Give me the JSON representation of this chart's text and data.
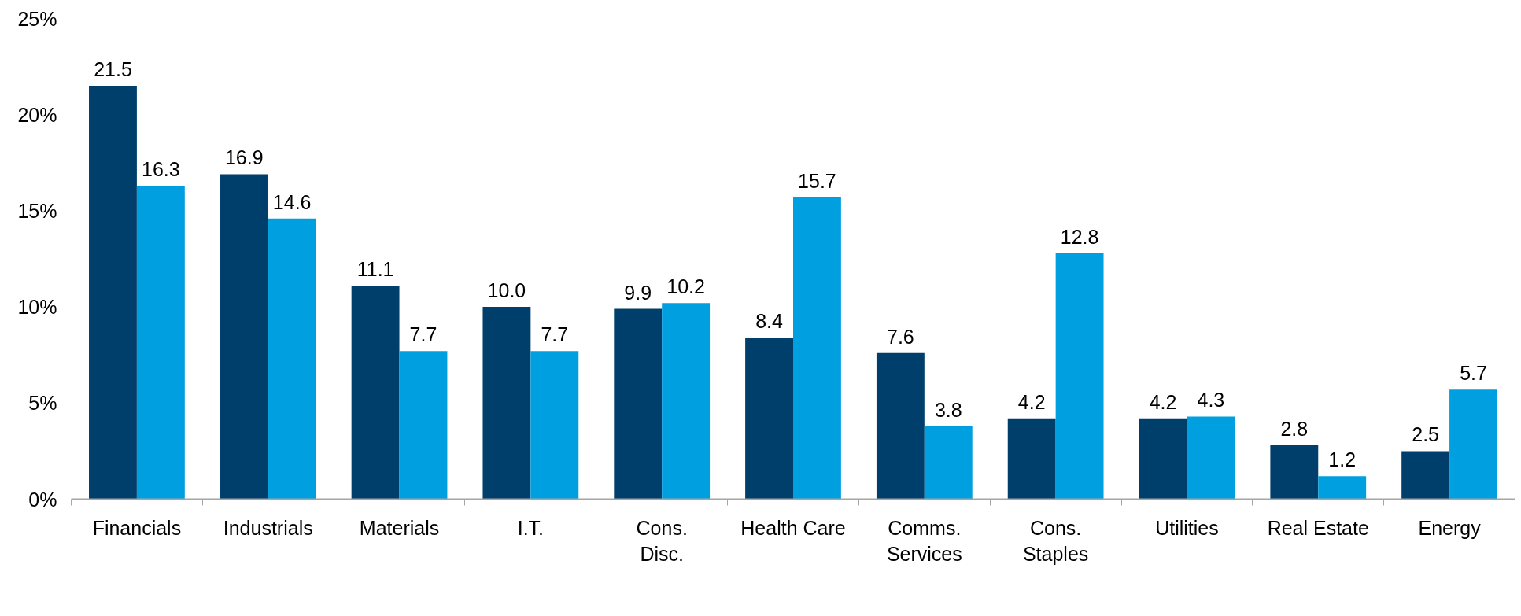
{
  "chart_data": {
    "type": "bar",
    "categories": [
      "Financials",
      "Industrials",
      "Materials",
      "I.T.",
      "Cons.\nDisc.",
      "Health Care",
      "Comms.\nServices",
      "Cons.\nStaples",
      "Utilities",
      "Real Estate",
      "Energy"
    ],
    "series": [
      {
        "color": "#003f6b",
        "values": [
          21.5,
          16.9,
          11.1,
          10.0,
          9.9,
          8.4,
          7.6,
          4.2,
          4.2,
          2.8,
          2.5
        ],
        "value_labels": [
          "21.5",
          "16.9",
          "11.1",
          "10.0",
          "9.9",
          "8.4",
          "7.6",
          "4.2",
          "4.2",
          "2.8",
          "2.5"
        ]
      },
      {
        "color": "#009fdf",
        "values": [
          16.3,
          14.6,
          7.7,
          7.7,
          10.2,
          15.7,
          3.8,
          12.8,
          4.3,
          1.2,
          5.7
        ],
        "value_labels": [
          "16.3",
          "14.6",
          "7.7",
          "7.7",
          "10.2",
          "15.7",
          "3.8",
          "12.8",
          "4.3",
          "1.2",
          "5.7"
        ]
      }
    ],
    "ylim": [
      0,
      25
    ],
    "yticks": [
      {
        "value": 0,
        "label": "0%"
      },
      {
        "value": 5,
        "label": "5%"
      },
      {
        "value": 10,
        "label": "10%"
      },
      {
        "value": 15,
        "label": "15%"
      },
      {
        "value": 20,
        "label": "20%"
      },
      {
        "value": 25,
        "label": "25%"
      }
    ],
    "grid": false
  }
}
